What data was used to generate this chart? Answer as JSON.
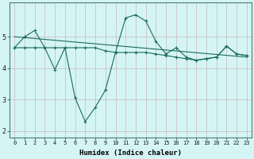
{
  "xlabel": "Humidex (Indice chaleur)",
  "background_color": "#d5f5f5",
  "grid_color_major": "#b8d8d8",
  "grid_color_minor": "#e0f0f0",
  "line_color": "#1a6b5e",
  "x_values": [
    0,
    1,
    2,
    3,
    4,
    5,
    6,
    7,
    8,
    9,
    10,
    11,
    12,
    13,
    14,
    15,
    16,
    17,
    18,
    19,
    20,
    21,
    22,
    23
  ],
  "series1": [
    4.65,
    5.0,
    5.2,
    4.65,
    3.95,
    4.65,
    3.05,
    2.3,
    2.75,
    3.3,
    4.5,
    5.6,
    5.7,
    5.5,
    4.85,
    4.45,
    4.65,
    4.35,
    4.25,
    4.3,
    4.35,
    4.7,
    4.45,
    4.4
  ],
  "series2": [
    4.65,
    4.65,
    4.65,
    4.65,
    4.65,
    4.65,
    4.65,
    4.65,
    4.65,
    4.55,
    4.5,
    4.5,
    4.5,
    4.5,
    4.45,
    4.4,
    4.35,
    4.3,
    4.25,
    4.3,
    4.35,
    4.7,
    4.45,
    4.4
  ],
  "series3_x": [
    0,
    23
  ],
  "series3_y": [
    5.0,
    4.35
  ],
  "ylim": [
    1.8,
    6.1
  ],
  "xlim": [
    -0.5,
    23.5
  ],
  "yticks": [
    2,
    3,
    4,
    5
  ],
  "xticks": [
    0,
    1,
    2,
    3,
    4,
    5,
    6,
    7,
    8,
    9,
    10,
    11,
    12,
    13,
    14,
    15,
    16,
    17,
    18,
    19,
    20,
    21,
    22,
    23
  ],
  "tick_fontsize": 5.0,
  "xlabel_fontsize": 6.5
}
